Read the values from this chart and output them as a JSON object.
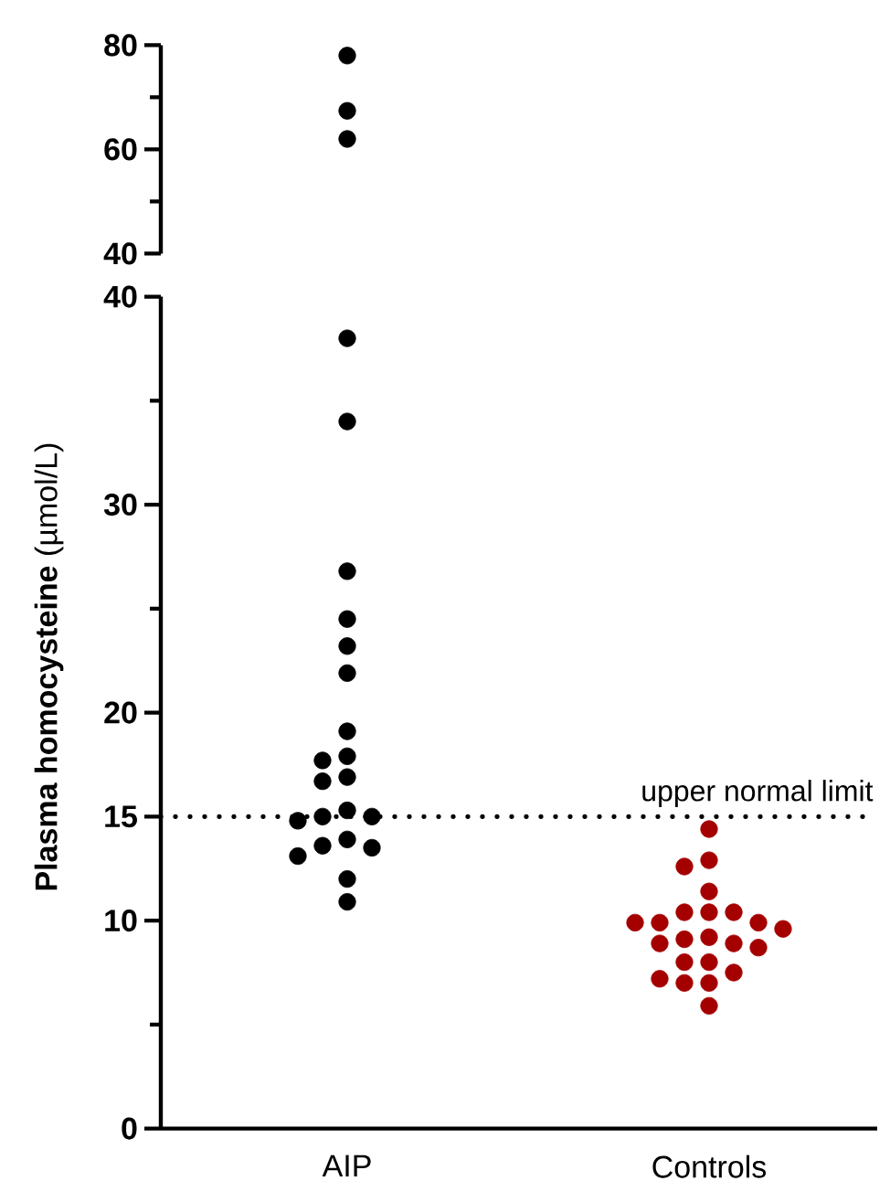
{
  "chart_data": [
    {
      "type": "scatter",
      "categories": [
        "AIP",
        "Controls"
      ],
      "ylim": [
        40,
        80
      ],
      "yticks": [
        40,
        {
          "value": 50,
          "label": null
        },
        60,
        {
          "value": 70,
          "label": null
        },
        80
      ],
      "tick_labels": "y",
      "marker": "circle",
      "grid": false,
      "series": [
        {
          "color": "#000000",
          "x": [
            "AIP",
            "AIP",
            "AIP"
          ],
          "values": [
            78,
            67.4,
            62
          ]
        }
      ]
    },
    {
      "type": "scatter",
      "categories": [
        "AIP",
        "Controls"
      ],
      "ylim": [
        0,
        40
      ],
      "yticks": [
        0,
        {
          "value": 5,
          "label": null
        },
        10,
        15,
        20,
        {
          "value": 25,
          "label": null
        },
        30,
        {
          "value": 35,
          "label": null
        },
        40
      ],
      "ylabel": "**Plasma homocysteine** (µmol/L)",
      "marker": "circle",
      "grid": false,
      "ref_lines": [
        {
          "axis": "y",
          "value": 15,
          "label": "upper normal limit",
          "line_style": "dotted",
          "color": "#000000"
        }
      ],
      "series": [
        {
          "color": "#000000",
          "x": [
            "AIP",
            "AIP",
            "AIP",
            "AIP",
            "AIP",
            "AIP",
            "AIP",
            "AIP",
            "AIP",
            "AIP",
            "AIP",
            "AIP",
            "AIP",
            "AIP",
            "AIP",
            "AIP",
            "AIP",
            "AIP",
            "AIP",
            "AIP",
            "AIP"
          ],
          "values": [
            38,
            34,
            26.8,
            24.5,
            23.2,
            21.9,
            19.1,
            17.9,
            17.7,
            16.9,
            16.7,
            15.3,
            15,
            15,
            14.8,
            13.9,
            13.5,
            13.6,
            13.1,
            12,
            10.9
          ]
        },
        {
          "color": "#a50000",
          "x": [
            "Controls",
            "Controls",
            "Controls",
            "Controls",
            "Controls",
            "Controls",
            "Controls",
            "Controls",
            "Controls",
            "Controls",
            "Controls",
            "Controls",
            "Controls",
            "Controls",
            "Controls",
            "Controls",
            "Controls",
            "Controls",
            "Controls",
            "Controls",
            "Controls",
            "Controls",
            "Controls"
          ],
          "values": [
            14.4,
            12.9,
            12.6,
            11.4,
            10.4,
            10.4,
            10.4,
            9.9,
            9.9,
            9.9,
            9.6,
            9.2,
            9.1,
            8.9,
            8.9,
            8.7,
            8,
            8,
            7.5,
            7,
            7.2,
            7,
            5.9
          ]
        }
      ]
    }
  ]
}
